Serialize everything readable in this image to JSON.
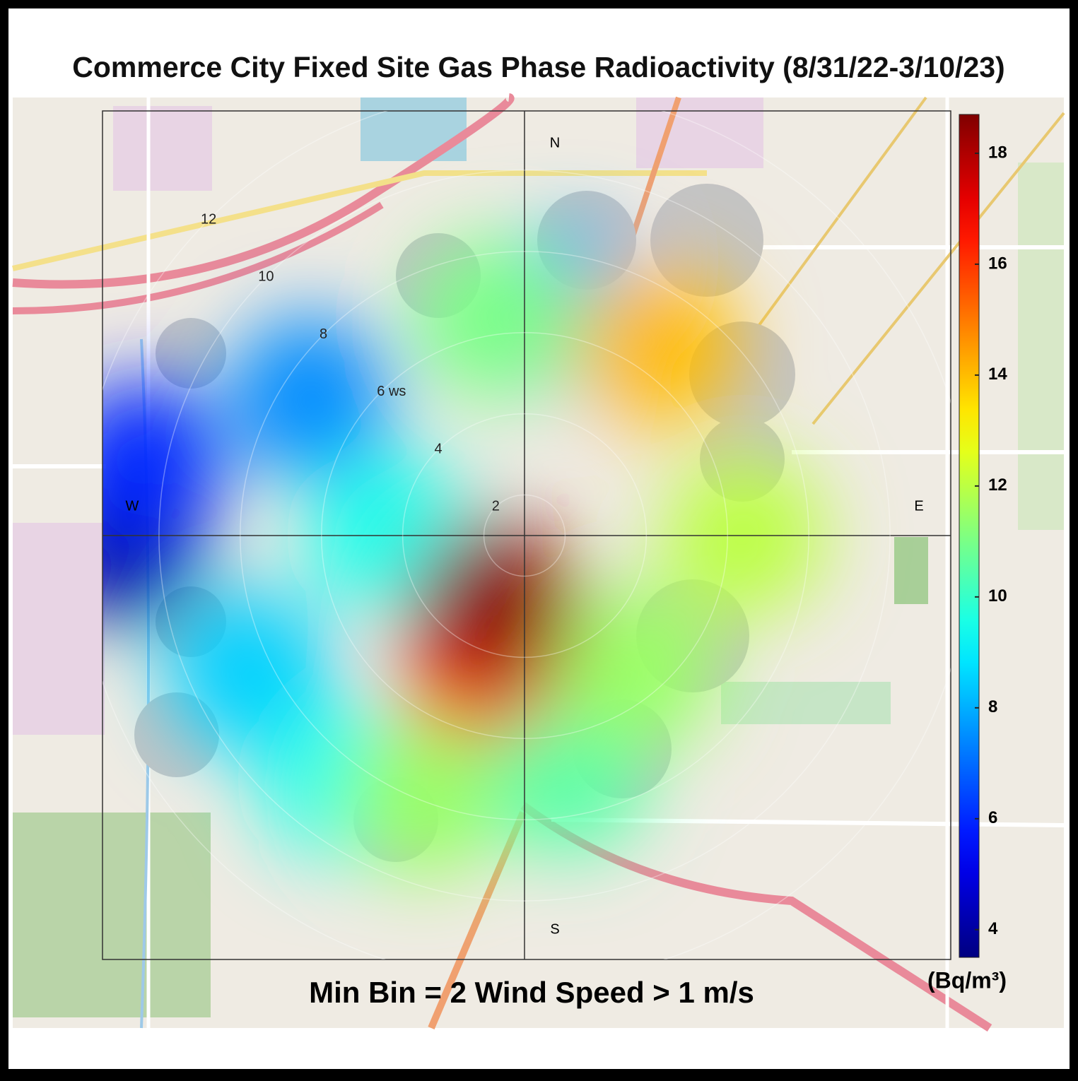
{
  "chart_data": {
    "type": "polar-heatmap",
    "title": "Commerce City Fixed Site Gas Phase Radioactivity (8/31/22-3/10/23)",
    "footer": "Min Bin = 2 Wind Speed > 1 m/s",
    "compass": [
      "N",
      "E",
      "S",
      "W"
    ],
    "rlim": [
      1,
      13
    ],
    "rticks": [
      2,
      4,
      {
        "value": 6,
        "label": "6 ws"
      },
      8,
      10,
      12
    ],
    "colorbar_label": "(Bq/m³)",
    "clim": [
      3.5,
      18.7
    ],
    "cticks": [
      4,
      6,
      8,
      10,
      12,
      14,
      16,
      18
    ],
    "colormap": "jet",
    "points": {
      "wd": [
        269,
        281,
        244,
        217,
        201,
        303,
        270,
        12,
        352,
        170,
        140,
        90,
        35,
        200,
        204
      ],
      "ws": [
        10.9,
        10.6,
        8.6,
        8.5,
        7.9,
        7.3,
        4.3,
        6.7,
        6.4,
        7,
        5.3,
        6.4,
        6.7,
        4.2,
        2.8
      ],
      "values": [
        4,
        6,
        8.5,
        9.5,
        11.5,
        7.5,
        9.5,
        8,
        11,
        10.5,
        11.5,
        12,
        14,
        16,
        18.5
      ]
    }
  }
}
